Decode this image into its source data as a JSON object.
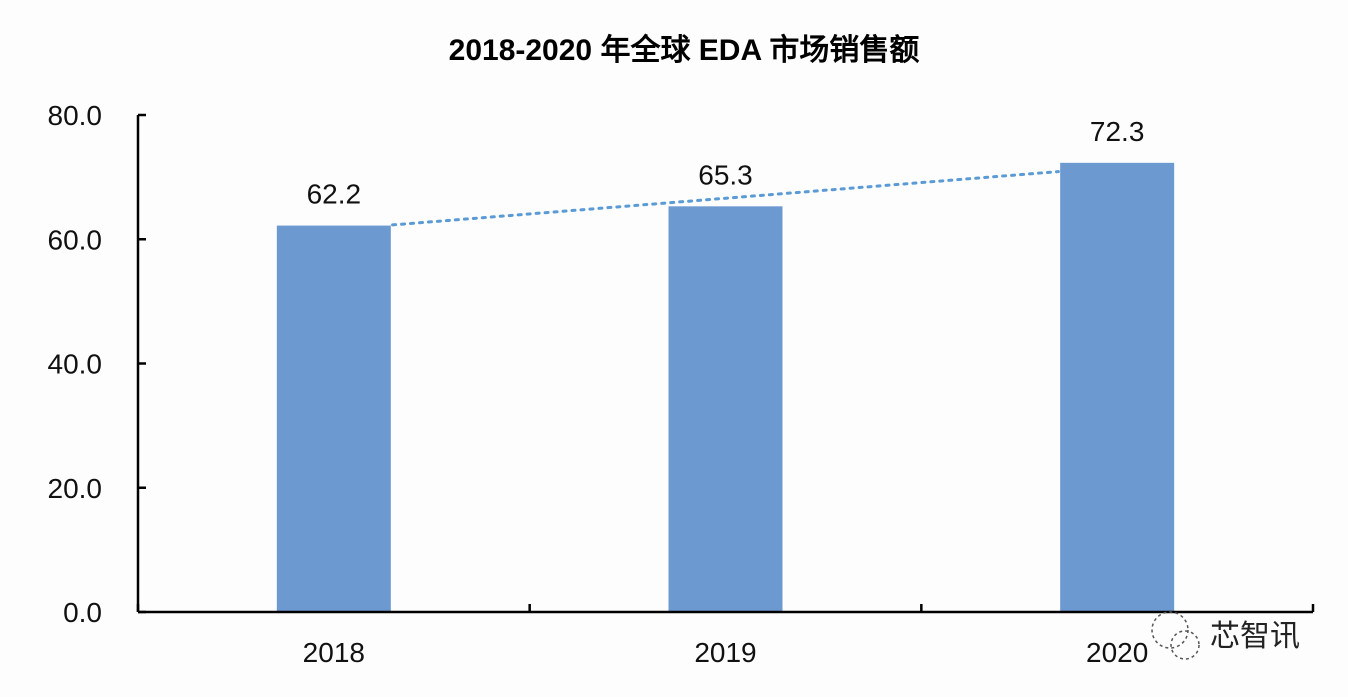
{
  "chart_data": {
    "type": "bar",
    "title": "2018-2020 年全球 EDA 市场销售额",
    "categories": [
      "2018",
      "2019",
      "2020"
    ],
    "values": [
      62.2,
      65.3,
      72.3
    ],
    "data_labels": [
      "62.2",
      "65.3",
      "72.3"
    ],
    "ylim": [
      0,
      80
    ],
    "yticks": [
      "0.0",
      "20.0",
      "40.0",
      "60.0",
      "80.0"
    ],
    "ytick_values": [
      0,
      20,
      40,
      60,
      80
    ],
    "grid": false,
    "trendline": "linear, dotted",
    "colors": {
      "bar": "#6d99d1",
      "trendline": "#5b9bd5",
      "axis": "#000000"
    }
  },
  "watermark": {
    "text": "芯智讯",
    "icon": "wechat-icon"
  }
}
